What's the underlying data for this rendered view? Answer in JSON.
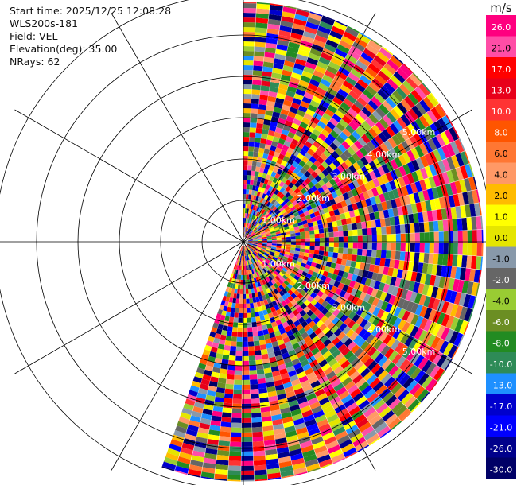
{
  "info": {
    "start_time": "Start time: 2025/12/25 12:08:28",
    "instrument": "WLS200s-181",
    "field": "Field: VEL",
    "elevation": "Elevation(deg): 35.00",
    "nrays": "NRays: 62"
  },
  "chart_data": {
    "type": "heatmap",
    "projection": "polar-ppi",
    "azimuth_range_deg": [
      0,
      200
    ],
    "n_rays": 62,
    "max_range_km": 5.8,
    "range_rings_km": [
      1,
      2,
      3,
      4,
      5,
      6
    ],
    "ring_labels": [
      "1.00km",
      "2.00km",
      "3.00km",
      "4.00km",
      "5.00km"
    ],
    "spoke_angles_deg": [
      0,
      30,
      60,
      90,
      120,
      150,
      180,
      210,
      240,
      270,
      300,
      330
    ],
    "colorbar": {
      "unit": "m/s",
      "tick_labels": [
        "26.0",
        "21.0",
        "17.0",
        "13.0",
        "10.0",
        "8.0",
        "6.0",
        "4.0",
        "2.0",
        "1.0",
        "0.0",
        "-1.0",
        "-2.0",
        "-4.0",
        "-6.0",
        "-8.0",
        "-10.0",
        "-13.0",
        "-17.0",
        "-21.0",
        "-26.0",
        "-30.0"
      ],
      "colors": [
        "#ff007f",
        "#ff4da6",
        "#ff0000",
        "#e8001a",
        "#ff3333",
        "#ff5500",
        "#ff7733",
        "#ff9966",
        "#ffbb00",
        "#ffff00",
        "#e5e500",
        "#8899aa",
        "#666666",
        "#99cc33",
        "#6b8e23",
        "#228b22",
        "#2e8b57",
        "#1e90ff",
        "#0000cd",
        "#0000ff",
        "#00008b",
        "#000066"
      ]
    }
  }
}
